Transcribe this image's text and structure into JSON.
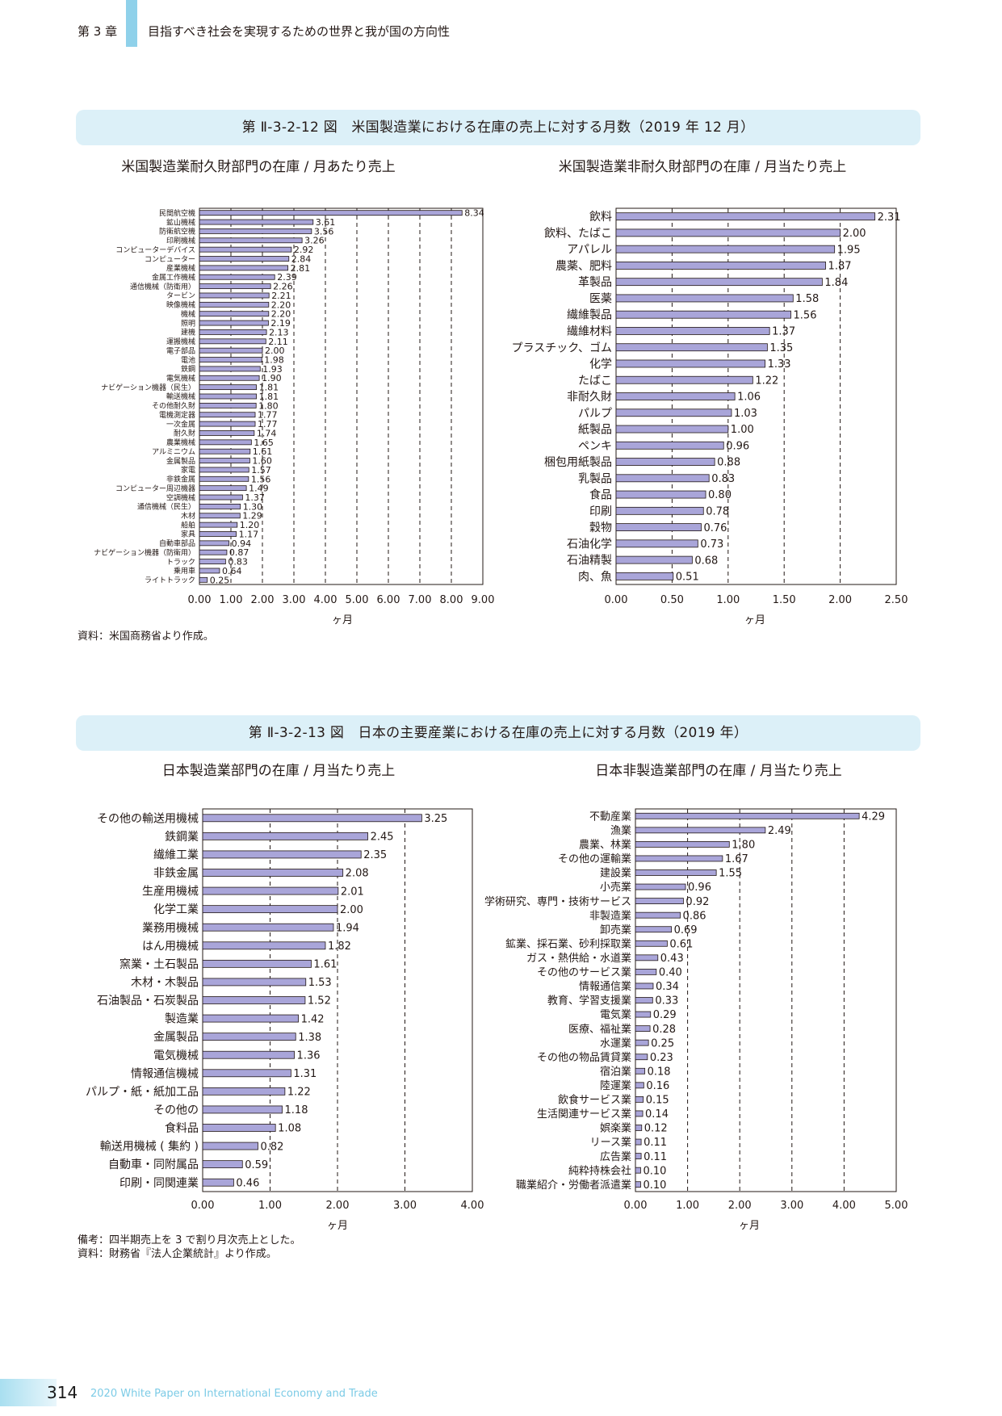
{
  "header": {
    "chapter": "第 3 章",
    "title": "目指すべき社会を実現するための世界と我が国の方向性"
  },
  "figure1": {
    "title": "第 Ⅱ-3-2-12 図　米国製造業における在庫の売上に対する月数（2019 年 12 月）",
    "source": "資料：米国商務省より作成。"
  },
  "figure2": {
    "title": "第 Ⅱ-3-2-13 図　日本の主要産業における在庫の売上に対する月数（2019 年）",
    "note": "備考：四半期売上を 3 で割り月次売上とした。",
    "source": "資料：財務省『法人企業統計』より作成。"
  },
  "footer": {
    "page": "314",
    "text": "2020 White Paper on International Economy and Trade"
  },
  "colors": {
    "bar_fill": "#a9a5d9",
    "bar_stroke": "#231815",
    "banner": "#dcf0f8",
    "accent": "#8fd1ea"
  },
  "chart_data": [
    {
      "type": "bar",
      "orientation": "horizontal",
      "title": "米国製造業耐久財部門の在庫 / 月あたり売上",
      "xlabel": "ヶ月",
      "xlim": [
        0,
        9
      ],
      "xticks": [
        "0.00",
        "1.00",
        "2.00",
        "3.00",
        "4.00",
        "5.00",
        "6.00",
        "7.00",
        "8.00",
        "9.00"
      ],
      "categories": [
        "民間航空機",
        "鉱山機械",
        "防衛航空機",
        "印刷機械",
        "コンピューターデバイス",
        "コンピューター",
        "産業機械",
        "金属工作機械",
        "通信機械（防衛用）",
        "タービン",
        "映像機械",
        "機械",
        "照明",
        "建機",
        "運搬機械",
        "電子部品",
        "電池",
        "鉄鋼",
        "電気機械",
        "ナビゲーション機器（民生）",
        "輸送機械",
        "その他耐久財",
        "電機測定器",
        "一次金属",
        "耐久財",
        "農業機械",
        "アルミニウム",
        "金属製品",
        "家電",
        "非鉄金属",
        "コンピューター周辺機器",
        "空調機械",
        "通信機械（民生）",
        "木材",
        "船舶",
        "家具",
        "自動車部品",
        "ナビゲーション機器（防衛用）",
        "トラック",
        "乗用車",
        "ライトトラック"
      ],
      "values": [
        8.34,
        3.61,
        3.56,
        3.26,
        2.92,
        2.84,
        2.81,
        2.39,
        2.26,
        2.21,
        2.2,
        2.2,
        2.19,
        2.13,
        2.11,
        2.0,
        1.98,
        1.93,
        1.9,
        1.81,
        1.81,
        1.8,
        1.77,
        1.77,
        1.74,
        1.65,
        1.61,
        1.6,
        1.57,
        1.56,
        1.49,
        1.37,
        1.3,
        1.29,
        1.2,
        1.17,
        0.94,
        0.87,
        0.83,
        0.64,
        0.25
      ],
      "value_labels": [
        "8.34",
        "3.61",
        "3.56",
        "3.26",
        "2.92",
        "2.84",
        "2.81",
        "2.39",
        "2.26",
        "2.21",
        "2.20",
        "2.20",
        "2.19",
        "2.13",
        "2.11",
        "2.00",
        "1.98",
        "1.93",
        "1.90",
        "1.81",
        "1.81",
        "1.80",
        "1.77",
        "1.77",
        "1.74",
        "1.65",
        "1.61",
        "1.60",
        "1.57",
        "1.56",
        "1.49",
        "1.37",
        "1.30",
        "1.29",
        "1.20",
        "1.17",
        "0.94",
        "0.87",
        "0.83",
        "0.64",
        "0.25"
      ]
    },
    {
      "type": "bar",
      "orientation": "horizontal",
      "title": "米国製造業非耐久財部門の在庫 / 月当たり売上",
      "xlabel": "ヶ月",
      "xlim": [
        0,
        2.5
      ],
      "xticks": [
        "0.00",
        "0.50",
        "1.00",
        "1.50",
        "2.00",
        "2.50"
      ],
      "categories": [
        "飲料",
        "飲料、たばこ",
        "アパレル",
        "農薬、肥料",
        "革製品",
        "医薬",
        "繊維製品",
        "繊維材料",
        "プラスチック、ゴム",
        "化学",
        "たばこ",
        "非耐久財",
        "パルプ",
        "紙製品",
        "ペンキ",
        "梱包用紙製品",
        "乳製品",
        "食品",
        "印刷",
        "穀物",
        "石油化学",
        "石油精製",
        "肉、魚"
      ],
      "values": [
        2.31,
        2.0,
        1.95,
        1.87,
        1.84,
        1.58,
        1.56,
        1.37,
        1.35,
        1.33,
        1.22,
        1.06,
        1.03,
        1.0,
        0.96,
        0.88,
        0.83,
        0.8,
        0.78,
        0.76,
        0.73,
        0.68,
        0.51
      ],
      "value_labels": [
        "2.31",
        "2.00",
        "1.95",
        "1.87",
        "1.84",
        "1.58",
        "1.56",
        "1.37",
        "1.35",
        "1.33",
        "1.22",
        "1.06",
        "1.03",
        "1.00",
        "0.96",
        "0.88",
        "0.83",
        "0.80",
        "0.78",
        "0.76",
        "0.73",
        "0.68",
        "0.51"
      ]
    },
    {
      "type": "bar",
      "orientation": "horizontal",
      "title": "日本製造業部門の在庫 / 月当たり売上",
      "xlabel": "ヶ月",
      "xlim": [
        0,
        4
      ],
      "xticks": [
        "0.00",
        "1.00",
        "2.00",
        "3.00",
        "4.00"
      ],
      "categories": [
        "その他の輸送用機械",
        "鉄鋼業",
        "繊維工業",
        "非鉄金属",
        "生産用機械",
        "化学工業",
        "業務用機械",
        "はん用機械",
        "窯業・土石製品",
        "木材・木製品",
        "石油製品・石炭製品",
        "製造業",
        "金属製品",
        "電気機械",
        "情報通信機械",
        "パルプ・紙・紙加工品",
        "その他の",
        "食料品",
        "輸送用機械 ( 集約 )",
        "自動車・同附属品",
        "印刷・同関連業"
      ],
      "values": [
        3.25,
        2.45,
        2.35,
        2.08,
        2.01,
        2.0,
        1.94,
        1.82,
        1.61,
        1.53,
        1.52,
        1.42,
        1.38,
        1.36,
        1.31,
        1.22,
        1.18,
        1.08,
        0.82,
        0.59,
        0.46
      ],
      "value_labels": [
        "3.25",
        "2.45",
        "2.35",
        "2.08",
        "2.01",
        "2.00",
        "1.94",
        "1.82",
        "1.61",
        "1.53",
        "1.52",
        "1.42",
        "1.38",
        "1.36",
        "1.31",
        "1.22",
        "1.18",
        "1.08",
        "0.82",
        "0.59",
        "0.46"
      ]
    },
    {
      "type": "bar",
      "orientation": "horizontal",
      "title": "日本非製造業部門の在庫 / 月当たり売上",
      "xlabel": "ヶ月",
      "xlim": [
        0,
        5
      ],
      "xticks": [
        "0.00",
        "1.00",
        "2.00",
        "3.00",
        "4.00",
        "5.00"
      ],
      "categories": [
        "不動産業",
        "漁業",
        "農業、林業",
        "その他の運輸業",
        "建設業",
        "小売業",
        "学術研究、専門・技術サービス",
        "非製造業",
        "卸売業",
        "鉱業、採石業、砂利採取業",
        "ガス・熱供給・水道業",
        "その他のサービス業",
        "情報通信業",
        "教育、学習支援業",
        "電気業",
        "医療、福祉業",
        "水運業",
        "その他の物品賃貸業",
        "宿泊業",
        "陸運業",
        "飲食サービス業",
        "生活関連サービス業",
        "娯楽業",
        "リース業",
        "広告業",
        "純粋持株会社",
        "職業紹介・労働者派遣業"
      ],
      "values": [
        4.29,
        2.49,
        1.8,
        1.67,
        1.55,
        0.96,
        0.92,
        0.86,
        0.69,
        0.61,
        0.43,
        0.4,
        0.34,
        0.33,
        0.29,
        0.28,
        0.25,
        0.23,
        0.18,
        0.16,
        0.15,
        0.14,
        0.12,
        0.11,
        0.11,
        0.1,
        0.1
      ],
      "value_labels": [
        "4.29",
        "2.49",
        "1.80",
        "1.67",
        "1.55",
        "0.96",
        "0.92",
        "0.86",
        "0.69",
        "0.61",
        "0.43",
        "0.40",
        "0.34",
        "0.33",
        "0.29",
        "0.28",
        "0.25",
        "0.23",
        "0.18",
        "0.16",
        "0.15",
        "0.14",
        "0.12",
        "0.11",
        "0.11",
        "0.10",
        "0.10"
      ]
    }
  ]
}
